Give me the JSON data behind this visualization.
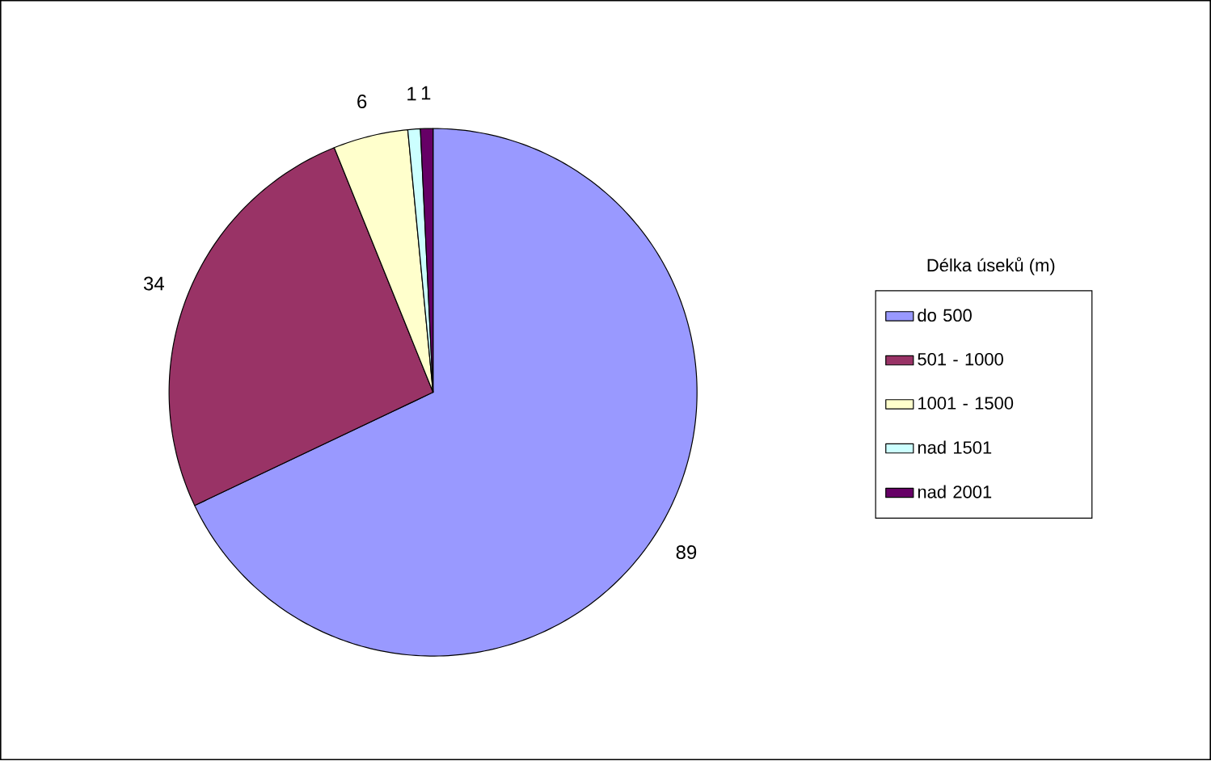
{
  "chart_data": {
    "type": "pie",
    "legend_title": "Délka úseků (m)",
    "categories": [
      "do 500",
      "501 - 1000",
      "1001 - 1500",
      "nad 1501",
      "nad 2001"
    ],
    "values": [
      89,
      34,
      6,
      1,
      1
    ],
    "colors": [
      "#9999ff",
      "#993366",
      "#ffffcc",
      "#ccffff",
      "#660066"
    ],
    "data_labels": true,
    "legend": "right"
  }
}
